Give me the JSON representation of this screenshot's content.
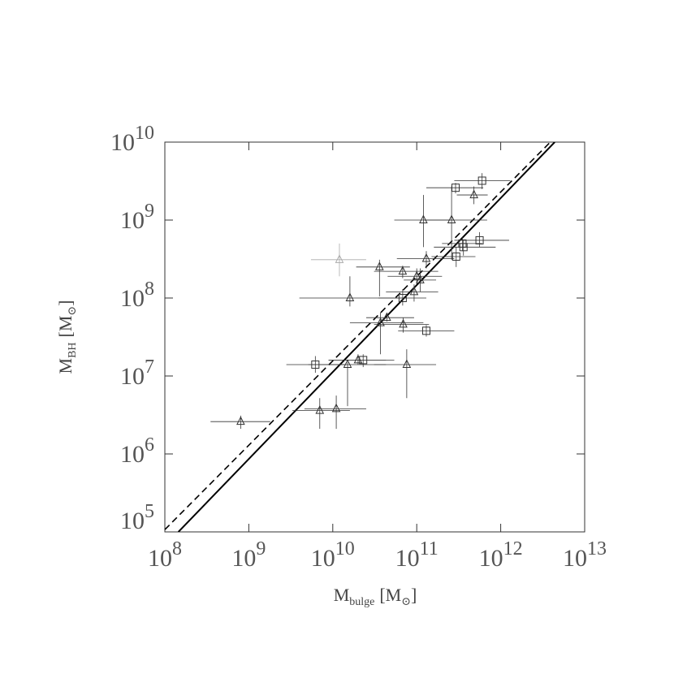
{
  "chart_data": {
    "type": "scatter",
    "xscale": "log",
    "yscale": "log",
    "xlim": [
      100000000,
      10000000000000
    ],
    "ylim": [
      100000,
      10000000000
    ],
    "xticks": [
      {
        "value": 100000000,
        "label": "10",
        "exponent": "8"
      },
      {
        "value": 1000000000,
        "label": "10",
        "exponent": "9"
      },
      {
        "value": 10000000000,
        "label": "10",
        "exponent": "10"
      },
      {
        "value": 100000000000,
        "label": "10",
        "exponent": "11"
      },
      {
        "value": 1000000000000,
        "label": "10",
        "exponent": "12"
      },
      {
        "value": 10000000000000,
        "label": "10",
        "exponent": "13"
      }
    ],
    "yticks": [
      {
        "value": 100000,
        "label": "10",
        "exponent": "5"
      },
      {
        "value": 1000000,
        "label": "10",
        "exponent": "6"
      },
      {
        "value": 10000000,
        "label": "10",
        "exponent": "7"
      },
      {
        "value": 100000000,
        "label": "10",
        "exponent": "8"
      },
      {
        "value": 1000000000,
        "label": "10",
        "exponent": "9"
      },
      {
        "value": 10000000000,
        "label": "10",
        "exponent": "10"
      }
    ],
    "xlabel": [
      "M",
      "bulge",
      "[M",
      "⊙",
      "]"
    ],
    "ylabel": [
      "M",
      "BH",
      "[M",
      "⊙",
      "]"
    ],
    "groups": [
      {
        "marker": "triangle",
        "color": "#333333",
        "x": [
          800000000.0,
          7000000000.0,
          11000000000.0,
          15000000000.0,
          16000000000.0,
          20000000000.0,
          36000000000.0,
          37000000000.0,
          44000000000.0,
          68000000000.0,
          69000000000.0,
          76000000000.0,
          93000000000.0,
          100000000000.0,
          110000000000.0,
          120000000000.0,
          130000000000.0,
          260000000000.0,
          480000000000.0
        ],
        "y": [
          2600000.0,
          3600000.0,
          3800000.0,
          14000000.0,
          100000000.0,
          16000000.0,
          250000000.0,
          48000000.0,
          56000000.0,
          220000000.0,
          46000000.0,
          14000000.0,
          120000000.0,
          190000000.0,
          170000000.0,
          1000000000.0,
          320000000.0,
          1000000000.0,
          2100000000.0
        ],
        "x_low": [
          350000000.0,
          3300000000.0,
          4600000000.0,
          5100000000.0,
          4000000000.0,
          8900000000.0,
          19000000000.0,
          16000000000.0,
          25000000000.0,
          31000000000.0,
          31000000000.0,
          31000000000.0,
          43000000000.0,
          45000000000.0,
          70000000000.0,
          54000000000.0,
          58000000000.0,
          120000000000.0,
          300000000000.0
        ],
        "x_high": [
          1800000000.0,
          16000000000.0,
          25000000000.0,
          43000000000.0,
          74000000000.0,
          43000000000.0,
          83000000000.0,
          120000000000.0,
          93000000000.0,
          180000000000.0,
          140000000000.0,
          170000000000.0,
          180000000000.0,
          200000000000.0,
          170000000000.0,
          280000000000.0,
          280000000000.0,
          690000000000.0,
          700000000000.0
        ],
        "y_low": [
          2100000.0,
          2100000.0,
          2100000.0,
          4100000.0,
          78000000.0,
          14000000.0,
          105000000.0,
          19000000.0,
          50000000.0,
          180000000.0,
          36000000.0,
          5200000.0,
          90000000.0,
          150000000.0,
          120000000.0,
          450000000.0,
          240000000.0,
          310000000.0,
          1600000000.0
        ],
        "y_high": [
          3100000.0,
          5200000.0,
          5600000.0,
          15000000.0,
          190000000.0,
          19000000.0,
          310000000.0,
          65000000.0,
          63000000.0,
          260000000.0,
          56000000.0,
          22000000.0,
          150000000.0,
          240000000.0,
          240000000.0,
          2100000000.0,
          400000000.0,
          2700000000.0,
          2700000000.0
        ]
      },
      {
        "marker": "triangle",
        "color": "#aaaaaa",
        "x": [
          12000000000.0
        ],
        "y": [
          310000000.0
        ],
        "x_low": [
          5500000000.0
        ],
        "x_high": [
          25000000000.0
        ],
        "y_low": [
          190000000.0
        ],
        "y_high": [
          500000000.0
        ]
      },
      {
        "marker": "square",
        "color": "#333333",
        "x": [
          6200000000.0,
          23000000000.0,
          68000000000.0,
          130000000000.0,
          290000000000.0,
          295000000000.0,
          350000000000.0,
          360000000000.0,
          560000000000.0,
          600000000000.0
        ],
        "y": [
          14000000.0,
          16000000.0,
          100000000.0,
          38000000.0,
          2600000000.0,
          340000000.0,
          500000000.0,
          450000000.0,
          550000000.0,
          3200000000.0
        ],
        "x_low": [
          2800000000.0,
          8900000000.0,
          35000000000.0,
          60000000000.0,
          130000000000.0,
          150000000000.0,
          200000000000.0,
          160000000000.0,
          280000000000.0,
          280000000000.0
        ],
        "x_high": [
          14000000000.0,
          54000000000.0,
          130000000000.0,
          280000000000.0,
          620000000000.0,
          500000000000.0,
          600000000000.0,
          870000000000.0,
          1260000000000.0,
          1300000000000.0
        ],
        "y_low": [
          11000000.0,
          13000000.0,
          80000000.0,
          32000000.0,
          2200000000.0,
          250000000.0,
          400000000.0,
          350000000.0,
          450000000.0,
          2500000000.0
        ],
        "y_high": [
          18000000.0,
          19000000.0,
          130000000.0,
          45000000.0,
          3000000000.0,
          450000000.0,
          600000000.0,
          550000000.0,
          700000000.0,
          4000000000.0
        ]
      }
    ],
    "lines": [
      {
        "style": "solid",
        "color": "#000000",
        "x": [
          145000000.0,
          4400000000000.0
        ],
        "y": [
          100000,
          10000000000
        ]
      },
      {
        "style": "dashed",
        "color": "#000000",
        "x": [
          100000000.0,
          3900000000000.0
        ],
        "y": [
          107000,
          10000000000
        ]
      }
    ]
  }
}
